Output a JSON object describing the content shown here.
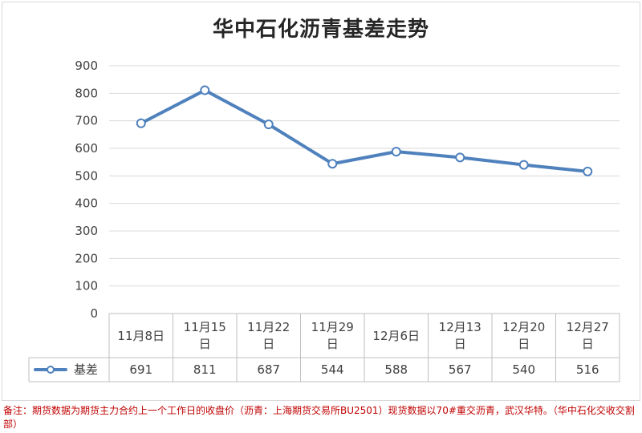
{
  "chart_data": {
    "type": "line",
    "title": "华中石化沥青基差走势",
    "categories": [
      "11月8日",
      "11月15日",
      "11月22日",
      "11月29日",
      "12月6日",
      "12月13日",
      "12月20日",
      "12月27日"
    ],
    "category_lines": [
      [
        "11月8日"
      ],
      [
        "11月15",
        "日"
      ],
      [
        "11月22",
        "日"
      ],
      [
        "11月29",
        "日"
      ],
      [
        "12月6日"
      ],
      [
        "12月13",
        "日"
      ],
      [
        "12月20",
        "日"
      ],
      [
        "12月27",
        "日"
      ]
    ],
    "series": [
      {
        "name": "基差",
        "values": [
          691,
          811,
          687,
          544,
          588,
          567,
          540,
          516
        ],
        "color": "#4f81bd"
      }
    ],
    "ylim": [
      0,
      900
    ],
    "yticks": [
      0,
      100,
      200,
      300,
      400,
      500,
      600,
      700,
      800,
      900
    ],
    "grid": true,
    "legend": "data-table",
    "data_table": true
  },
  "note": "备注：期货数据为期货主力合约上一个工作日的收盘价（沥青：上海期货交易所BU2501）现货数据以70#重交沥青，武汉华特。（华中石化交收交割部）"
}
